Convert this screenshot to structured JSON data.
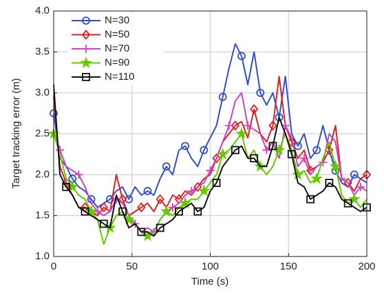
{
  "chart_data": {
    "type": "line",
    "x_label": "Time (s)",
    "y_label": "Target tracking error (m)",
    "xlim": [
      0,
      200
    ],
    "xticks": [
      0,
      50,
      100,
      150,
      200
    ],
    "ylim": [
      1.0,
      4.0
    ],
    "yticks": [
      {
        "value": 1,
        "label": "1.0"
      },
      {
        "value": 1.5,
        "label": "1.5"
      },
      {
        "value": 2,
        "label": "2.0"
      },
      {
        "value": 2.5,
        "label": "2.5"
      },
      {
        "value": 3,
        "label": "3.0"
      },
      {
        "value": 3.5,
        "label": "3.5"
      },
      {
        "value": 4,
        "label": "4.0"
      }
    ],
    "grid": true,
    "legend": "upper-left",
    "x": [
      0,
      4,
      8,
      12,
      16,
      20,
      24,
      28,
      32,
      36,
      40,
      44,
      48,
      52,
      56,
      60,
      64,
      68,
      72,
      76,
      80,
      84,
      88,
      92,
      96,
      100,
      104,
      108,
      112,
      116,
      120,
      124,
      128,
      132,
      136,
      140,
      144,
      148,
      152,
      156,
      160,
      164,
      168,
      172,
      176,
      180,
      184,
      188,
      192,
      196,
      200
    ],
    "series": [
      {
        "name": "N=30",
        "color": "#2f4fd0",
        "marker": "circle",
        "values": [
          2.75,
          2.2,
          2.1,
          1.95,
          1.85,
          1.8,
          1.7,
          1.6,
          1.65,
          1.7,
          1.8,
          1.85,
          1.7,
          1.85,
          1.75,
          1.8,
          1.75,
          1.95,
          2.1,
          2.0,
          2.3,
          2.35,
          2.2,
          2.1,
          2.3,
          2.45,
          2.6,
          2.95,
          3.3,
          3.6,
          3.45,
          3.1,
          3.5,
          3.0,
          2.85,
          3.0,
          2.7,
          3.2,
          2.5,
          2.35,
          2.5,
          2.2,
          2.3,
          2.6,
          2.3,
          2.05,
          1.9,
          1.85,
          2.0,
          1.95,
          1.9
        ]
      },
      {
        "name": "N=50",
        "color": "#e02020",
        "marker": "diamond",
        "values": [
          2.95,
          2.1,
          1.9,
          1.75,
          1.6,
          1.6,
          1.55,
          1.5,
          1.6,
          1.55,
          2.0,
          1.7,
          1.5,
          1.55,
          1.6,
          1.65,
          1.55,
          1.7,
          1.6,
          1.75,
          1.7,
          1.8,
          1.75,
          1.85,
          1.95,
          2.0,
          2.2,
          2.4,
          2.5,
          2.6,
          2.65,
          2.45,
          2.8,
          2.5,
          2.4,
          2.6,
          3.2,
          2.6,
          2.4,
          2.2,
          2.3,
          2.05,
          2.1,
          2.15,
          2.3,
          2.6,
          1.95,
          1.9,
          1.8,
          1.95,
          2.0
        ]
      },
      {
        "name": "N=70",
        "color": "#d23fc4",
        "marker": "plus",
        "values": [
          2.55,
          2.3,
          2.1,
          2.05,
          2.0,
          1.85,
          1.65,
          1.55,
          1.5,
          1.55,
          1.7,
          1.65,
          1.5,
          1.4,
          1.3,
          1.35,
          1.3,
          1.45,
          1.55,
          1.6,
          1.65,
          1.75,
          1.8,
          1.85,
          1.9,
          2.05,
          2.2,
          2.4,
          2.6,
          2.9,
          3.0,
          2.6,
          2.55,
          2.5,
          2.3,
          2.4,
          2.2,
          2.6,
          2.45,
          2.1,
          2.2,
          2.0,
          2.1,
          2.15,
          2.5,
          2.4,
          1.95,
          1.9,
          1.75,
          1.85,
          1.8
        ]
      },
      {
        "name": "N=90",
        "color": "#66c800",
        "marker": "star",
        "values": [
          2.5,
          2.25,
          1.95,
          1.85,
          1.75,
          1.7,
          1.55,
          1.45,
          1.15,
          1.35,
          1.5,
          1.55,
          1.45,
          1.4,
          1.3,
          1.25,
          1.3,
          1.45,
          1.55,
          1.5,
          1.6,
          1.65,
          1.7,
          1.7,
          1.8,
          1.9,
          2.0,
          2.25,
          2.3,
          2.4,
          2.5,
          2.2,
          2.3,
          2.1,
          2.0,
          2.1,
          2.3,
          2.5,
          2.3,
          2.0,
          2.05,
          1.9,
          1.95,
          2.2,
          2.4,
          2.1,
          1.75,
          1.65,
          1.7,
          1.6,
          1.7
        ]
      },
      {
        "name": "N=110",
        "color": "#111111",
        "marker": "square",
        "values": [
          3.1,
          2.0,
          1.85,
          1.75,
          1.6,
          1.55,
          1.5,
          1.45,
          1.4,
          1.35,
          1.75,
          1.55,
          1.35,
          1.4,
          1.3,
          1.3,
          1.25,
          1.35,
          1.4,
          1.45,
          1.55,
          1.6,
          1.65,
          1.55,
          1.6,
          1.8,
          1.9,
          2.1,
          2.2,
          2.3,
          2.35,
          2.2,
          2.2,
          2.1,
          2.1,
          2.35,
          2.7,
          2.5,
          2.25,
          1.9,
          1.85,
          1.7,
          1.75,
          1.8,
          1.9,
          1.85,
          1.7,
          1.65,
          1.6,
          1.55,
          1.6
        ]
      }
    ]
  }
}
